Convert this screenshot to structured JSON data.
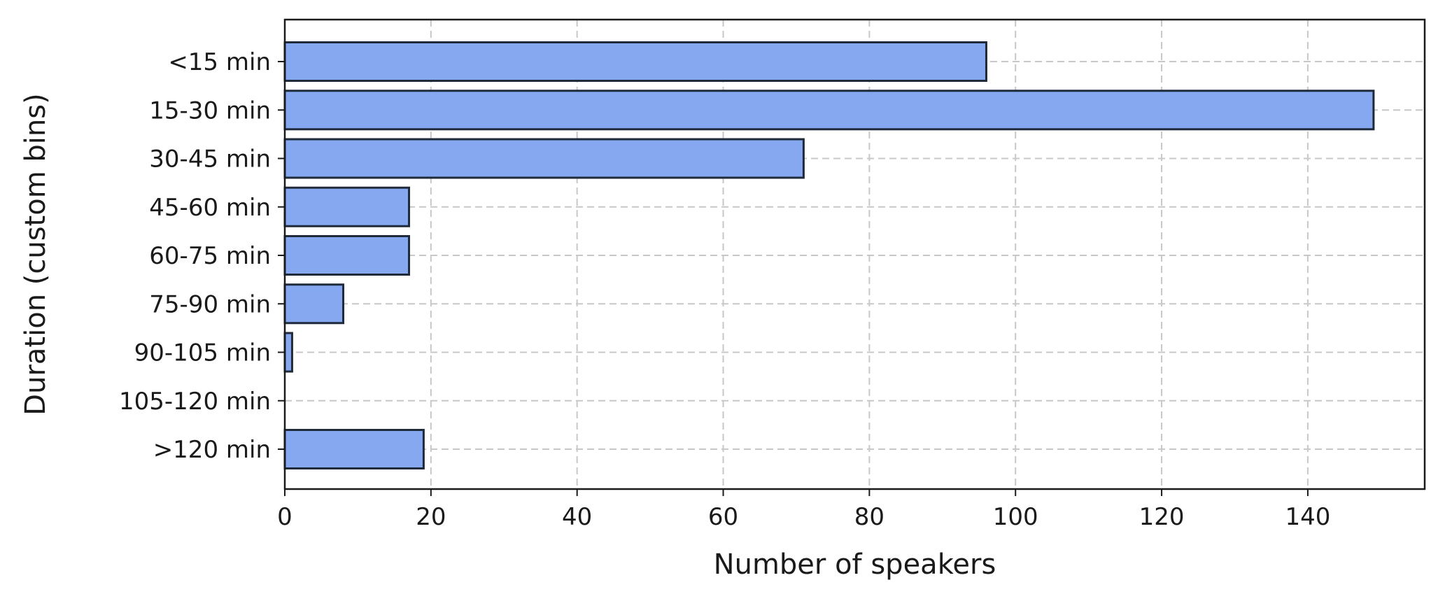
{
  "chart_data": {
    "type": "bar",
    "orientation": "horizontal",
    "title": "",
    "xlabel": "Number of speakers",
    "ylabel": "Duration (custom bins)",
    "categories": [
      "<15 min",
      "15-30 min",
      "30-45 min",
      "45-60 min",
      "60-75 min",
      "75-90 min",
      "90-105 min",
      "105-120 min",
      ">120 min"
    ],
    "values": [
      96,
      149,
      71,
      17,
      17,
      8,
      1,
      0,
      19
    ],
    "xlim": [
      0,
      156
    ],
    "xticks": [
      0,
      20,
      40,
      60,
      80,
      100,
      120,
      140
    ],
    "grid": true,
    "legend": "none",
    "bar_color": "#86a8f0",
    "bar_edge_color": "#1f2a3a"
  }
}
